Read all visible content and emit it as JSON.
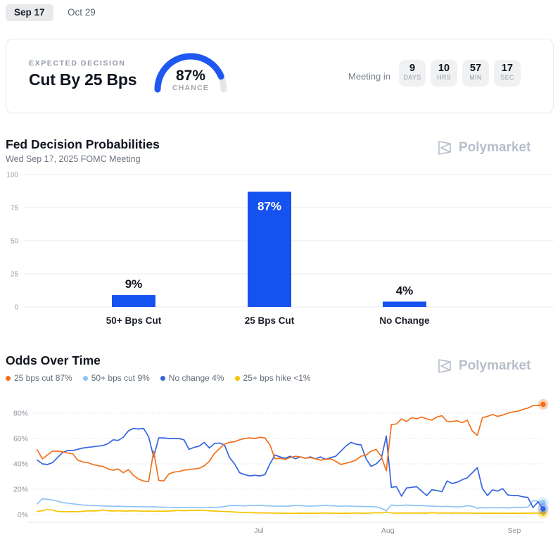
{
  "tabs": [
    {
      "label": "Sep 17",
      "selected": true
    },
    {
      "label": "Oct 29",
      "selected": false
    }
  ],
  "summary_card": {
    "eyebrow": "EXPECTED DECISION",
    "decision": "Cut By 25 Bps",
    "gauge": {
      "percent": 87,
      "value_label": "87%",
      "sub_label": "CHANCE"
    },
    "countdown": {
      "label": "Meeting in",
      "units": [
        {
          "value": "9",
          "unit": "DAYS"
        },
        {
          "value": "10",
          "unit": "HRS"
        },
        {
          "value": "57",
          "unit": "MIN"
        },
        {
          "value": "17",
          "unit": "SEC"
        }
      ]
    }
  },
  "bar_section": {
    "title": "Fed Decision Probabilities",
    "subtitle": "Wed Sep 17, 2025 FOMC Meeting",
    "brand": "Polymarket"
  },
  "odds_section": {
    "title": "Odds Over Time",
    "brand": "Polymarket",
    "legend": [
      {
        "label": "25 bps cut 87%",
        "color": "#f2701d"
      },
      {
        "label": "50+ bps cut 9%",
        "color": "#8fc3f7"
      },
      {
        "label": "No change 4%",
        "color": "#3565e0"
      },
      {
        "label": "25+ bps hike <1%",
        "color": "#f6c500"
      }
    ]
  },
  "colors": {
    "bar_blue": "#1652f0",
    "gauge_blue": "#1f58f0",
    "gauge_track": "#e4e6e9",
    "grid_solid": "#e9ebee",
    "grid_dotted": "#d9dce1",
    "axis_line": "#e3e5e8",
    "tick_text": "#9aa0a6",
    "label_dark": "#10131a",
    "brand_gray": "#b6bfca"
  },
  "chart_data": [
    {
      "type": "bar",
      "title": "Fed Decision Probabilities",
      "subtitle": "Wed Sep 17, 2025 FOMC Meeting",
      "categories": [
        "50+ Bps Cut",
        "25 Bps Cut",
        "No Change"
      ],
      "values": [
        9,
        87,
        4
      ],
      "value_labels": [
        "9%",
        "87%",
        "4%"
      ],
      "ylim": [
        0,
        100
      ],
      "yticks": [
        0,
        25,
        50,
        75,
        100
      ],
      "bar_color": "#1652f0",
      "grid": true,
      "legend_position": "none"
    },
    {
      "type": "line",
      "title": "Odds Over Time",
      "ylim": [
        0,
        90
      ],
      "yticks": [
        0,
        20,
        40,
        60,
        80
      ],
      "ytick_labels": [
        "0%",
        "20%",
        "40%",
        "60%",
        "80%"
      ],
      "xticks": [
        "Jul",
        "Aug",
        "Sep"
      ],
      "xtick_positions": [
        43.8,
        69.3,
        94.3
      ],
      "x_unit": "percent_of_range_0_100",
      "grid": "dotted_horizontal",
      "legend_position": "top_left_above_chart",
      "series": [
        {
          "name": "25 bps cut",
          "current": "87%",
          "color": "#f2701d",
          "values": [
            51,
            44,
            47,
            50,
            50,
            49.5,
            48.5,
            48,
            43,
            41.5,
            41,
            39.5,
            38.5,
            38,
            36,
            35,
            36,
            33,
            35.5,
            31,
            28,
            26.5,
            26,
            50,
            27,
            26.5,
            32,
            33.5,
            34,
            35,
            35.5,
            36,
            36.5,
            38.5,
            42,
            48,
            52,
            55.5,
            57,
            57.5,
            59,
            60,
            60.5,
            60,
            61,
            60.5,
            55,
            44,
            44.5,
            43.5,
            45,
            46,
            45.5,
            44.5,
            45,
            44,
            43,
            43.5,
            44,
            42,
            39.5,
            40.5,
            41.5,
            43,
            46,
            47,
            50,
            51.5,
            46,
            34.5,
            71,
            71.5,
            75.5,
            73.5,
            76.5,
            75.5,
            77,
            75.5,
            74.5,
            77,
            78,
            73.5,
            73.5,
            74,
            72.5,
            74.5,
            66,
            62.5,
            76.5,
            77.5,
            79,
            77.5,
            78.5,
            80,
            81,
            81.5,
            83,
            84,
            86,
            86,
            87
          ]
        },
        {
          "name": "50+ bps cut",
          "current": "9%",
          "color": "#8fc3f7",
          "values": [
            8.5,
            12.5,
            12,
            11.5,
            10.5,
            9.5,
            9,
            8.5,
            8,
            7.5,
            7.3,
            7,
            7,
            6.8,
            6.6,
            6.5,
            6.6,
            6.4,
            6.3,
            6.2,
            6.2,
            6.1,
            6,
            6.2,
            5.9,
            5.8,
            5.7,
            5.6,
            5.6,
            5.5,
            5.6,
            5.5,
            5.4,
            5.4,
            5.5,
            5.6,
            5.8,
            6.3,
            7,
            7.2,
            7,
            6.8,
            7.2,
            7,
            7.3,
            7,
            6.8,
            6.6,
            6.8,
            6.5,
            6.7,
            7.2,
            7,
            6.8,
            6.6,
            6.8,
            7,
            7.3,
            7,
            6.8,
            6.6,
            6.8,
            6.6,
            6.5,
            6.4,
            6.3,
            6.2,
            6,
            5,
            3,
            7.5,
            7,
            7.2,
            7.5,
            7.3,
            7,
            7.2,
            6.8,
            6.6,
            6.5,
            6.3,
            6.5,
            6.2,
            6,
            6.2,
            7,
            6.5,
            5,
            5.5,
            5.2,
            5.5,
            5.3,
            5.5,
            5.2,
            5.5,
            5.8,
            5.5,
            6,
            11,
            10.5,
            9.5
          ]
        },
        {
          "name": "No change",
          "current": "4%",
          "color": "#3565e0",
          "values": [
            43,
            40,
            39.5,
            41,
            45,
            49,
            50.5,
            50.5,
            51.5,
            52.5,
            53,
            53.5,
            54,
            54.5,
            56,
            59,
            58.5,
            61,
            66,
            68,
            67.5,
            68,
            61.5,
            45.5,
            60.5,
            60.5,
            60,
            60,
            60,
            59,
            51.5,
            53,
            54,
            57,
            52.5,
            56,
            56.5,
            55,
            45,
            40,
            33,
            31.5,
            30.5,
            31,
            30.5,
            31.5,
            40,
            47,
            45.5,
            44.5,
            46,
            44,
            45.5,
            44.5,
            45.5,
            44,
            45.5,
            43.5,
            45,
            46,
            50,
            54,
            57,
            55.5,
            55,
            44,
            38,
            40,
            44,
            62,
            21.5,
            22,
            14.5,
            21,
            21.5,
            22,
            18.5,
            15,
            19.5,
            19,
            18,
            26.5,
            24.5,
            25.5,
            27.5,
            29,
            33,
            37,
            20.5,
            15,
            19.5,
            18.5,
            20.5,
            15.5,
            15,
            15,
            14,
            13.5,
            5.5,
            10,
            4.5
          ]
        },
        {
          "name": "25+ bps hike",
          "current": "<1%",
          "color": "#f6c500",
          "values": [
            2.5,
            3,
            4,
            3.5,
            2.5,
            2.2,
            2.2,
            2.3,
            2.2,
            2.5,
            3,
            2.8,
            3,
            3.5,
            3,
            2.8,
            3,
            2.8,
            2.8,
            3,
            2.8,
            2.6,
            2.8,
            2.6,
            2.7,
            2.6,
            2.8,
            3,
            3.2,
            3,
            3.3,
            3.2,
            3.4,
            3.2,
            3,
            2.8,
            2.6,
            2.4,
            2.2,
            2,
            1.8,
            1.6,
            1.5,
            1.4,
            1.3,
            1.2,
            1.2,
            1.1,
            1.1,
            1,
            1,
            1,
            1.1,
            1,
            1.1,
            1,
            1.1,
            1.2,
            1.1,
            1,
            1,
            1.1,
            1,
            1.2,
            1.1,
            1,
            1.2,
            1.5,
            1.2,
            2,
            1.2,
            1.1,
            1.2,
            1.1,
            1.2,
            1.1,
            1.2,
            1.1,
            1.5,
            1.2,
            1.1,
            1.2,
            1.1,
            1.2,
            1.1,
            1.2,
            1.1,
            1,
            1.1,
            1,
            1.1,
            1,
            1.1,
            1,
            1.1,
            1,
            1.1,
            1,
            1.2,
            1.1,
            1
          ]
        }
      ]
    }
  ]
}
